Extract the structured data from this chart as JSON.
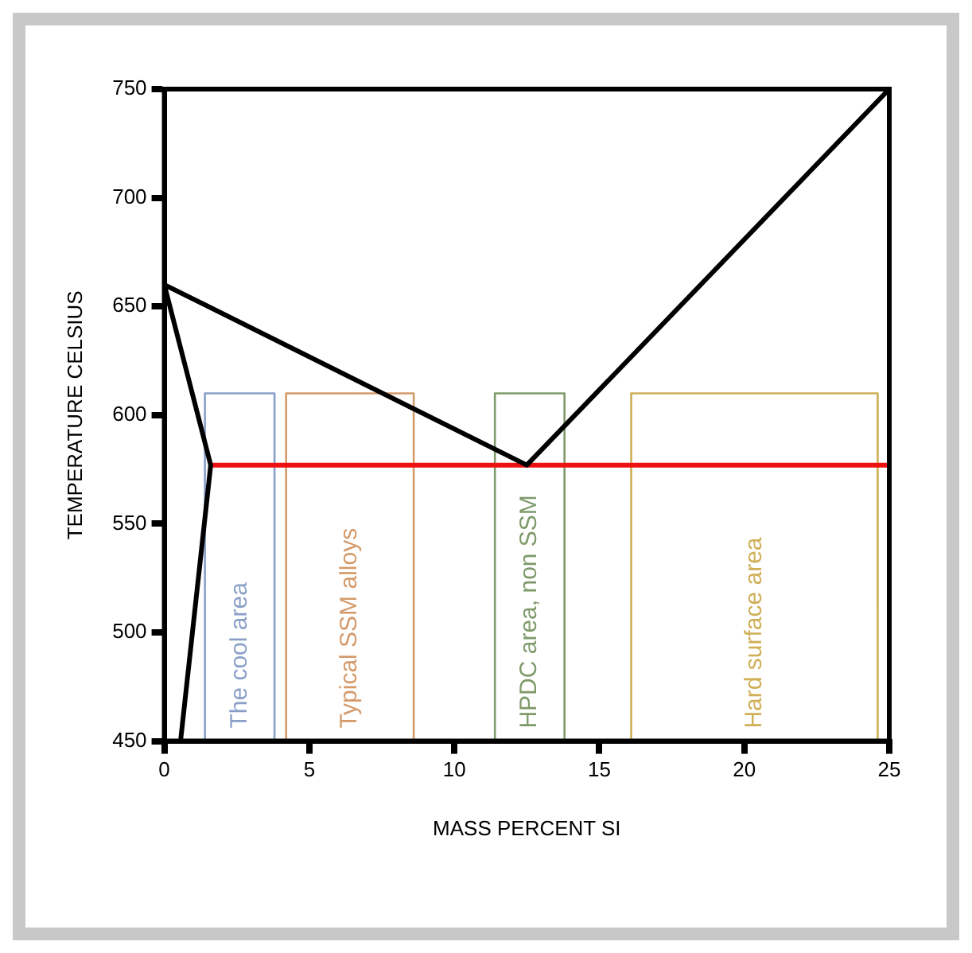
{
  "chart_data": {
    "type": "line",
    "xlabel": "MASS PERCENT SI",
    "ylabel": "TEMPERATURE CELSIUS",
    "xlim": [
      0,
      25
    ],
    "xticks": [
      0,
      5,
      10,
      15,
      20,
      25
    ],
    "ylim": [
      450,
      750
    ],
    "yticks": [
      450,
      500,
      550,
      600,
      650,
      700,
      750
    ],
    "grid": false,
    "legend": false,
    "marker": "none",
    "line_style": "solid",
    "series": [
      {
        "color": "#000000",
        "x": [
          0,
          12.5,
          25
        ],
        "values": [
          660,
          577,
          750
        ]
      },
      {
        "color": "#000000",
        "x": [
          0,
          1.6,
          0.56
        ],
        "values": [
          660,
          577,
          450
        ]
      },
      {
        "color": "#ee1111",
        "x": [
          1.6,
          25
        ],
        "values": [
          577,
          577
        ]
      },
      {
        "name": "The cool area",
        "color": "#8a9fc8",
        "x": [
          1.4,
          1.4,
          3.8,
          3.8
        ],
        "values": [
          450,
          610,
          610,
          450
        ]
      },
      {
        "name": "Typical SSM alloys",
        "color": "#d49a6a",
        "x": [
          4.2,
          4.2,
          8.6,
          8.6
        ],
        "values": [
          450,
          610,
          610,
          450
        ]
      },
      {
        "name": "HPDC area, non SSM",
        "color": "#7f9a6a",
        "x": [
          11.4,
          11.4,
          13.8,
          13.8
        ],
        "values": [
          450,
          610,
          610,
          450
        ]
      },
      {
        "name": "Hard surface area",
        "color": "#cfae55",
        "x": [
          16.1,
          16.1,
          24.6,
          24.6
        ],
        "values": [
          450,
          610,
          610,
          450
        ]
      }
    ]
  }
}
